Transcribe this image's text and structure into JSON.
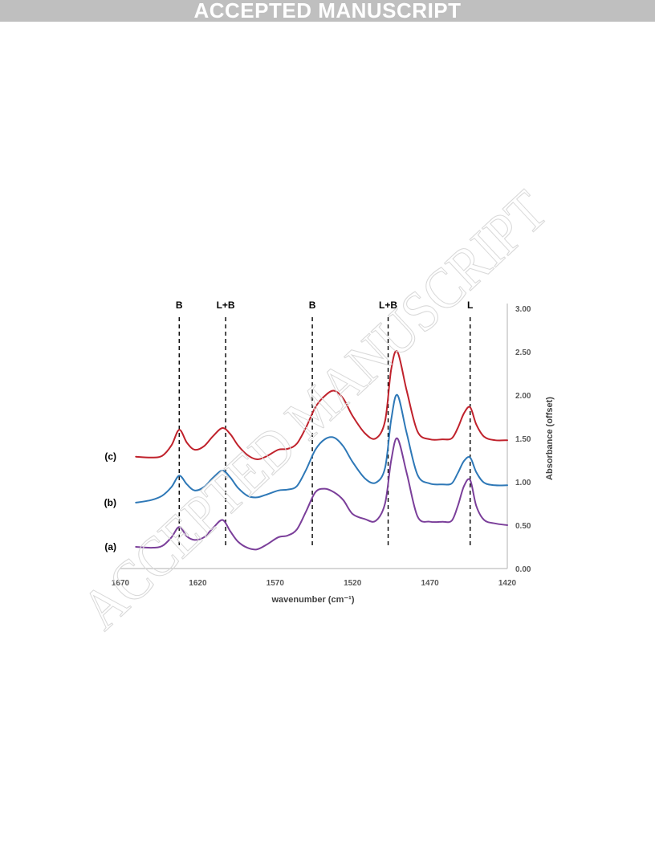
{
  "banner": {
    "text": "ACCEPTED MANUSCRIPT"
  },
  "watermark": {
    "text": "ACCEPTED MANUSCRIPT"
  },
  "colors": {
    "series_c": "#c0222c",
    "series_b": "#2e78b7",
    "series_a": "#7b3f9a",
    "axis": "#bfbfbf",
    "banner_bg": "#bfbfbf"
  },
  "chart_data": {
    "type": "line",
    "title": "",
    "xlabel": "wavenumber (cm⁻¹)",
    "ylabel": "Absorbance (offset)",
    "x_reversed": true,
    "xlim": [
      1670,
      1420
    ],
    "ylim": [
      0,
      3
    ],
    "x_ticks": [
      1670,
      1620,
      1570,
      1520,
      1470,
      1420
    ],
    "x_tick_labels": [
      "1670",
      "1620",
      "1570",
      "1520",
      "1470",
      "1420"
    ],
    "y_ticks": [
      0,
      0.5,
      1,
      1.5,
      2,
      2.5,
      3
    ],
    "y_tick_labels": [
      "0.00",
      "0.50",
      "1.00",
      "1.50",
      "2.00",
      "2.50",
      "3.00"
    ],
    "y_axis_side": "right",
    "grid": false,
    "annotations": [
      {
        "label": "B",
        "x": 1632
      },
      {
        "label": "L+B",
        "x": 1602
      },
      {
        "label": "B",
        "x": 1546
      },
      {
        "label": "L+B",
        "x": 1497
      },
      {
        "label": "L",
        "x": 1444
      }
    ],
    "series": [
      {
        "name": "(c)",
        "x": [
          1660,
          1650,
          1643,
          1637,
          1632,
          1627,
          1622,
          1616,
          1610,
          1604,
          1599,
          1594,
          1588,
          1582,
          1576,
          1568,
          1562,
          1556,
          1550,
          1544,
          1538,
          1532,
          1526,
          1520,
          1512,
          1505,
          1499,
          1495,
          1491,
          1485,
          1478,
          1470,
          1462,
          1456,
          1452,
          1448,
          1444,
          1440,
          1435,
          1428,
          1420
        ],
        "y": [
          1.29,
          1.28,
          1.3,
          1.42,
          1.6,
          1.45,
          1.37,
          1.41,
          1.53,
          1.62,
          1.55,
          1.42,
          1.31,
          1.26,
          1.29,
          1.37,
          1.38,
          1.44,
          1.63,
          1.86,
          1.99,
          2.05,
          1.96,
          1.76,
          1.56,
          1.5,
          1.7,
          2.3,
          2.5,
          2.05,
          1.58,
          1.49,
          1.49,
          1.5,
          1.62,
          1.79,
          1.86,
          1.66,
          1.52,
          1.48,
          1.48
        ]
      },
      {
        "name": "(b)",
        "x": [
          1660,
          1650,
          1643,
          1637,
          1632,
          1627,
          1622,
          1616,
          1610,
          1604,
          1599,
          1594,
          1588,
          1582,
          1576,
          1568,
          1562,
          1556,
          1550,
          1544,
          1538,
          1532,
          1526,
          1520,
          1512,
          1505,
          1499,
          1495,
          1491,
          1485,
          1478,
          1470,
          1462,
          1456,
          1452,
          1448,
          1444,
          1440,
          1435,
          1428,
          1420
        ],
        "y": [
          0.76,
          0.79,
          0.84,
          0.94,
          1.07,
          0.97,
          0.9,
          0.94,
          1.05,
          1.13,
          1.05,
          0.93,
          0.84,
          0.82,
          0.85,
          0.9,
          0.91,
          0.95,
          1.14,
          1.37,
          1.49,
          1.51,
          1.41,
          1.23,
          1.04,
          0.99,
          1.16,
          1.72,
          2.0,
          1.56,
          1.08,
          0.98,
          0.97,
          0.98,
          1.1,
          1.24,
          1.28,
          1.11,
          0.99,
          0.96,
          0.96
        ]
      },
      {
        "name": "(a)",
        "x": [
          1660,
          1650,
          1643,
          1637,
          1632,
          1627,
          1622,
          1616,
          1610,
          1604,
          1599,
          1594,
          1588,
          1582,
          1576,
          1568,
          1562,
          1556,
          1550,
          1544,
          1538,
          1532,
          1526,
          1520,
          1512,
          1505,
          1499,
          1495,
          1491,
          1485,
          1478,
          1470,
          1462,
          1456,
          1452,
          1448,
          1444,
          1440,
          1435,
          1428,
          1420
        ],
        "y": [
          0.25,
          0.24,
          0.26,
          0.36,
          0.48,
          0.37,
          0.33,
          0.36,
          0.47,
          0.56,
          0.43,
          0.31,
          0.24,
          0.22,
          0.27,
          0.36,
          0.38,
          0.45,
          0.66,
          0.88,
          0.92,
          0.88,
          0.79,
          0.63,
          0.57,
          0.55,
          0.75,
          1.25,
          1.5,
          1.1,
          0.6,
          0.54,
          0.54,
          0.55,
          0.72,
          0.95,
          1.02,
          0.72,
          0.56,
          0.52,
          0.5
        ]
      }
    ]
  }
}
